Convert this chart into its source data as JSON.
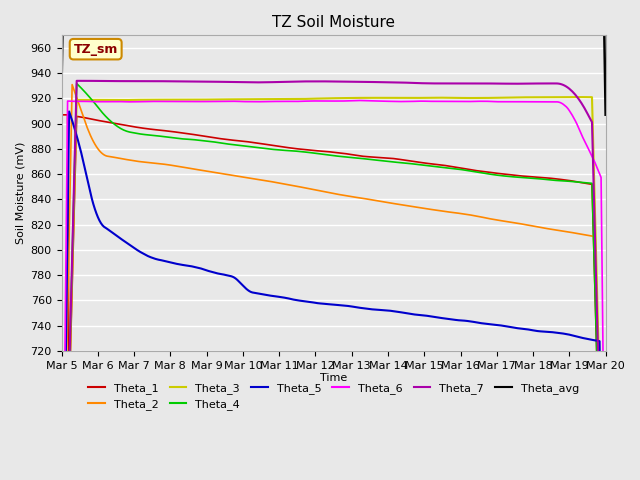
{
  "title": "TZ Soil Moisture",
  "xlabel": "Time",
  "ylabel": "Soil Moisture (mV)",
  "ylim": [
    720,
    970
  ],
  "yticks": [
    720,
    740,
    760,
    780,
    800,
    820,
    840,
    860,
    880,
    900,
    920,
    940,
    960
  ],
  "background_color": "#e8e8e8",
  "legend_label": "TZ_sm",
  "series_colors": {
    "Theta_1": "#cc0000",
    "Theta_2": "#ff8800",
    "Theta_3": "#cccc00",
    "Theta_4": "#00cc00",
    "Theta_5": "#0000cc",
    "Theta_6": "#ff00ff",
    "Theta_7": "#aa00aa",
    "Theta_avg": "#000000"
  },
  "x_labels": [
    "Mar 5",
    "Mar 6",
    "Mar 7",
    "Mar 8",
    "Mar 9",
    "Mar 10",
    "Mar 11",
    "Mar 12",
    "Mar 13",
    "Mar 14",
    "Mar 15",
    "Mar 16",
    "Mar 17",
    "Mar 18",
    "Mar 19",
    "Mar 20"
  ]
}
